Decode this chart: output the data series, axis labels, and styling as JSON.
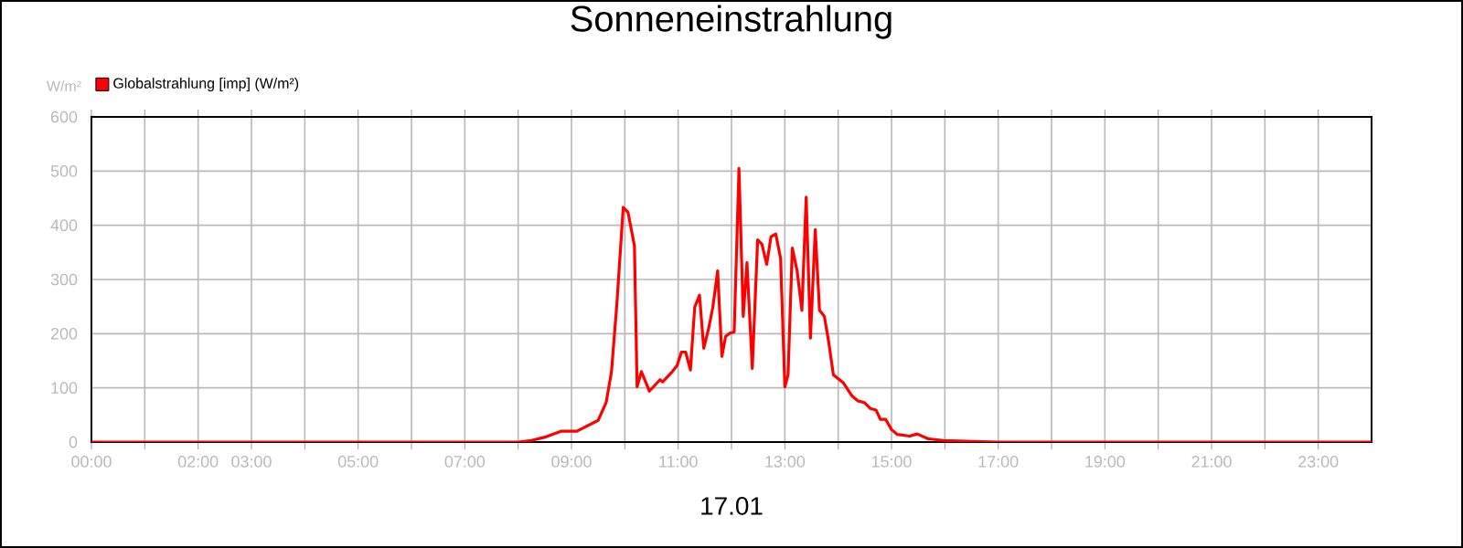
{
  "chart_data": {
    "type": "line",
    "title": "Sonneneinstrahlung",
    "xlabel": "17.01",
    "ylabel": "W/m²",
    "legend": "top left",
    "grid": true,
    "marker": "none",
    "line_style": "solid",
    "xlim": [
      0,
      24
    ],
    "ylim": [
      0,
      600
    ],
    "yticks": [
      0,
      100,
      200,
      300,
      400,
      500,
      600
    ],
    "xticks": [
      {
        "value": 0,
        "label": "00:00"
      },
      {
        "value": 1,
        "label": null
      },
      {
        "value": 2,
        "label": "02:00"
      },
      {
        "value": 3,
        "label": "03:00"
      },
      {
        "value": 4,
        "label": null
      },
      {
        "value": 5,
        "label": "05:00"
      },
      {
        "value": 6,
        "label": null
      },
      {
        "value": 7,
        "label": "07:00"
      },
      {
        "value": 8,
        "label": null
      },
      {
        "value": 9,
        "label": "09:00"
      },
      {
        "value": 10,
        "label": null
      },
      {
        "value": 11,
        "label": "11:00"
      },
      {
        "value": 12,
        "label": null
      },
      {
        "value": 13,
        "label": "13:00"
      },
      {
        "value": 14,
        "label": null
      },
      {
        "value": 15,
        "label": "15:00"
      },
      {
        "value": 16,
        "label": null
      },
      {
        "value": 17,
        "label": "17:00"
      },
      {
        "value": 18,
        "label": null
      },
      {
        "value": 19,
        "label": "19:00"
      },
      {
        "value": 20,
        "label": null
      },
      {
        "value": 21,
        "label": "21:00"
      },
      {
        "value": 22,
        "label": null
      },
      {
        "value": 23,
        "label": "23:00"
      }
    ],
    "x": [
      0,
      8.0,
      8.25,
      8.5,
      8.8,
      9.1,
      9.5,
      9.65,
      9.75,
      9.85,
      9.97,
      10.06,
      10.18,
      10.23,
      10.31,
      10.46,
      10.66,
      10.71,
      10.89,
      10.98,
      11.06,
      11.14,
      11.23,
      11.31,
      11.4,
      11.48,
      11.57,
      11.65,
      11.74,
      11.82,
      11.89,
      11.97,
      12.05,
      12.14,
      12.22,
      12.29,
      12.39,
      12.49,
      12.57,
      12.66,
      12.74,
      12.83,
      12.92,
      13.0,
      13.06,
      13.14,
      13.23,
      13.32,
      13.4,
      13.48,
      13.57,
      13.65,
      13.74,
      13.82,
      13.91,
      14.09,
      14.26,
      14.37,
      14.49,
      14.6,
      14.71,
      14.79,
      14.89,
      15.0,
      15.11,
      15.34,
      15.48,
      15.69,
      15.97,
      16.54,
      17.0,
      24
    ],
    "series": [
      {
        "name": "Globalstrahlung [imp] (W/m²)",
        "color": "#ff0000",
        "values": [
          0,
          0,
          3,
          9,
          20,
          20,
          40,
          73,
          130,
          254,
          433,
          424,
          362,
          102,
          130,
          94,
          115,
          111,
          130,
          141,
          166,
          166,
          133,
          249,
          271,
          173,
          209,
          249,
          316,
          158,
          195,
          201,
          203,
          505,
          232,
          331,
          136,
          373,
          365,
          328,
          379,
          384,
          339,
          102,
          124,
          358,
          316,
          243,
          452,
          192,
          392,
          243,
          232,
          186,
          124,
          110,
          85,
          76,
          73,
          62,
          59,
          42,
          42,
          23,
          14,
          11,
          15,
          6,
          3,
          1,
          0,
          0
        ]
      }
    ]
  }
}
